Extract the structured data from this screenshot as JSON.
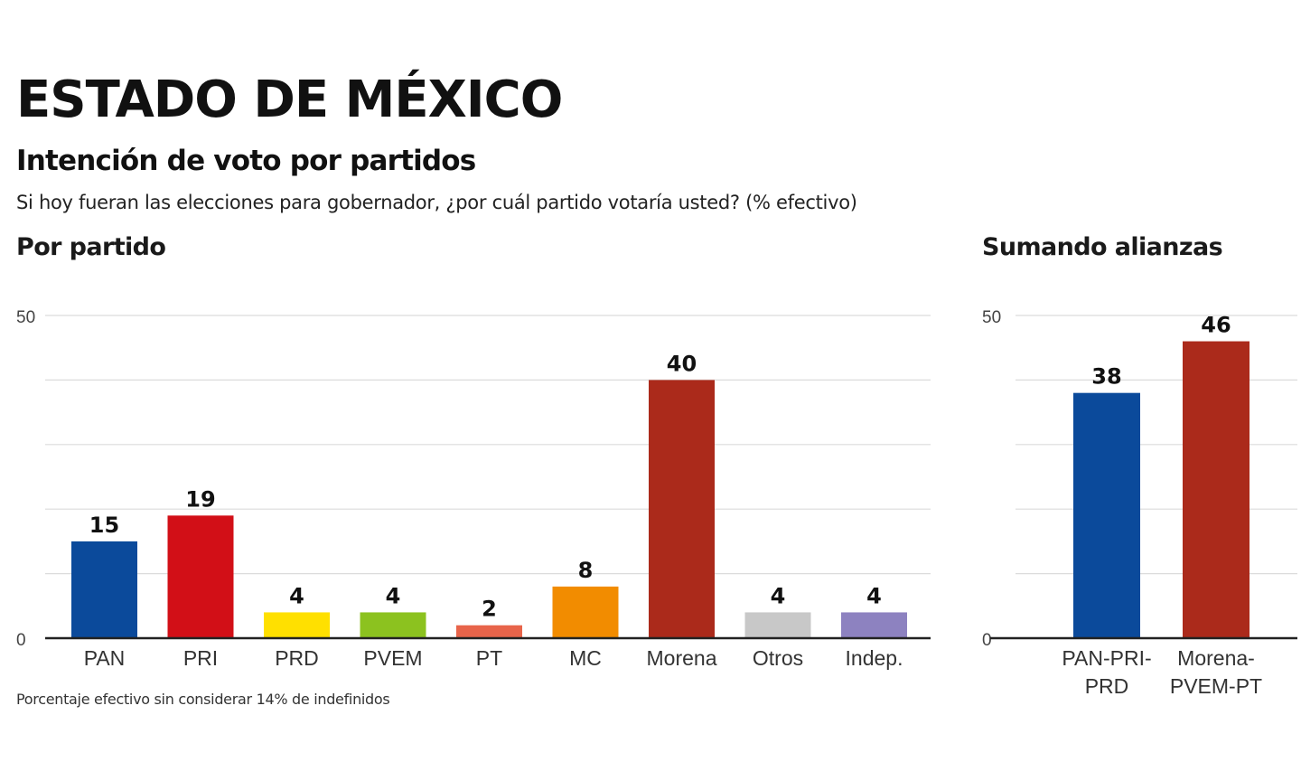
{
  "header": {
    "title": "ESTADO DE MÉXICO",
    "subtitle": "Intención de voto por partidos",
    "question": "Si hoy fueran las elecciones para gobernador, ¿por cuál partido votaría usted? (% efectivo)"
  },
  "footnote": "Porcentaje efectivo sin considerar 14% de indefinidos",
  "chart_data": [
    {
      "type": "bar",
      "title": "Por partido",
      "categories": [
        [
          "PAN"
        ],
        [
          "PRI"
        ],
        [
          "PRD"
        ],
        [
          "PVEM"
        ],
        [
          "PT"
        ],
        [
          "MC"
        ],
        [
          "Morena"
        ],
        [
          "Otros"
        ],
        [
          "Indep."
        ]
      ],
      "values": [
        15,
        19,
        4,
        4,
        2,
        8,
        40,
        4,
        4
      ],
      "colors": [
        "#0b4a9b",
        "#d20f17",
        "#ffe000",
        "#8cc21f",
        "#e8644a",
        "#f28c00",
        "#ab2a1b",
        "#c8c8c8",
        "#8d82c0"
      ],
      "ylim": [
        0,
        50
      ],
      "yticks": [
        "0",
        "50"
      ],
      "grid": true
    },
    {
      "type": "bar",
      "title": "Sumando alianzas",
      "categories": [
        [
          "PAN-PRI-",
          "PRD"
        ],
        [
          "Morena-",
          "PVEM-PT"
        ]
      ],
      "values": [
        38,
        46
      ],
      "colors": [
        "#0b4a9b",
        "#ab2a1b"
      ],
      "ylim": [
        0,
        50
      ],
      "yticks": [
        "0",
        "50"
      ],
      "grid": true
    }
  ]
}
